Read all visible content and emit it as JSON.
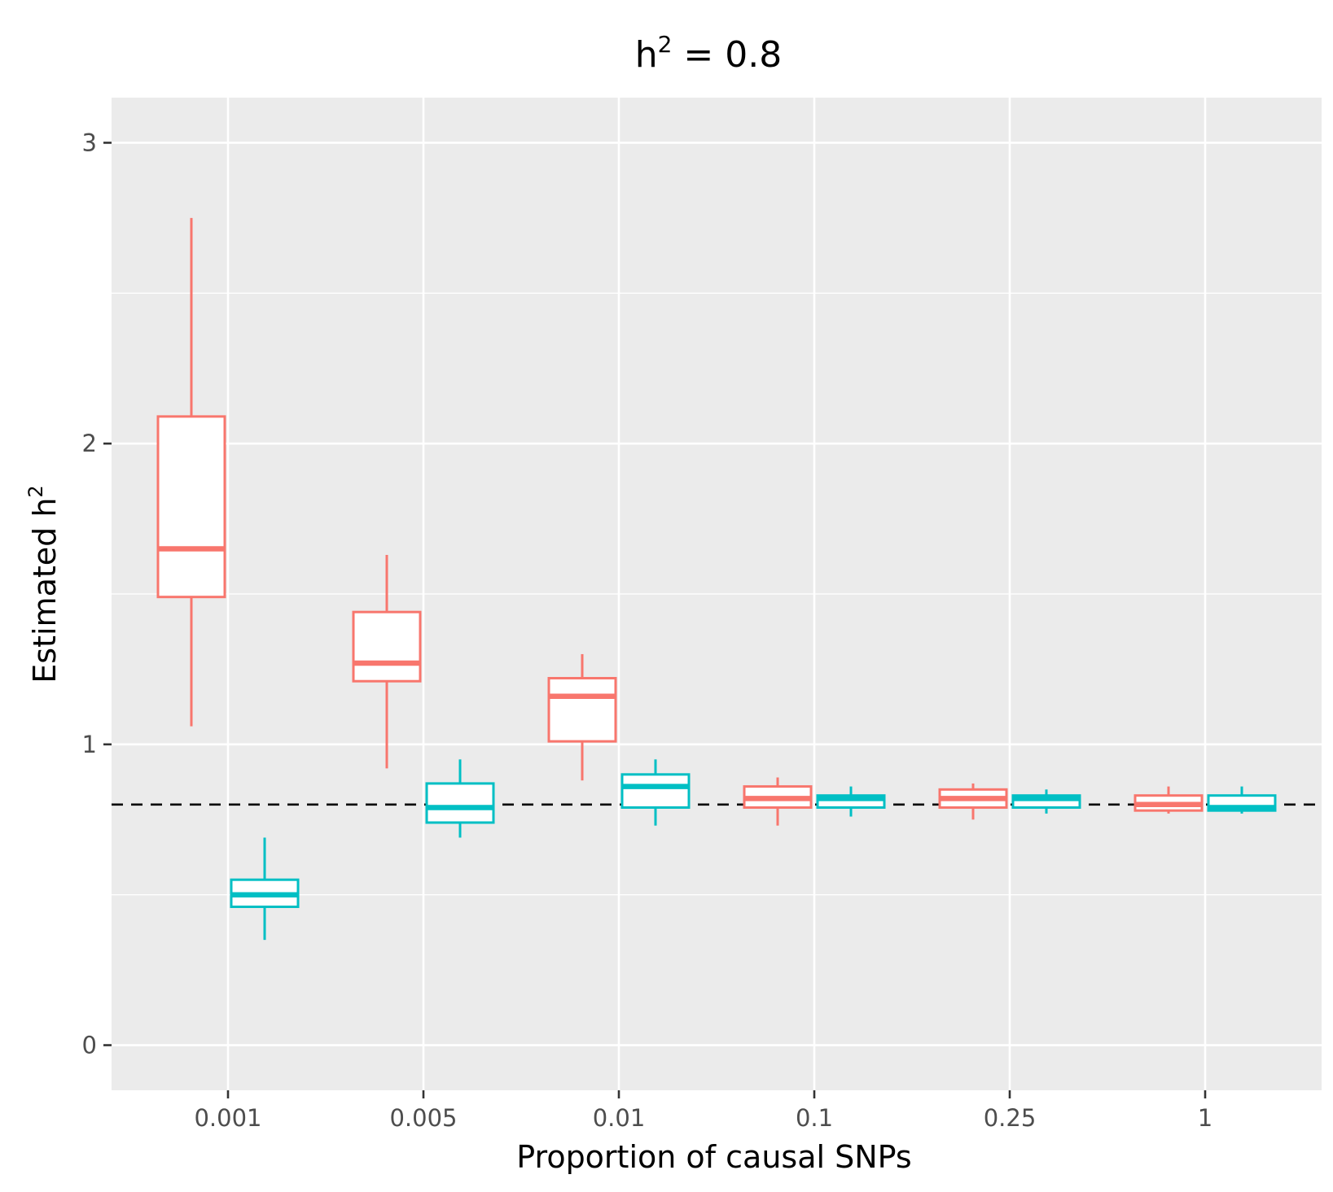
{
  "chart_data": {
    "type": "box",
    "title": "h",
    "title_superscript": "2",
    "title_suffix": " = 0.8",
    "xlabel": "Proportion of causal SNPs",
    "ylabel": "Estimated h",
    "ylabel_superscript": "2",
    "categories": [
      "0.001",
      "0.005",
      "0.01",
      "0.1",
      "0.25",
      "1"
    ],
    "yticks": [
      0,
      1,
      2,
      3
    ],
    "ylim": [
      -0.15,
      3.15
    ],
    "reference_line": 0.8,
    "background": "#ebebeb",
    "grid": true,
    "legend": "none",
    "series": [
      {
        "color": "#f8766d",
        "offset": "left",
        "boxes": [
          {
            "category": "0.001",
            "min": 1.06,
            "q1": 1.49,
            "median": 1.65,
            "q3": 2.09,
            "max": 2.75
          },
          {
            "category": "0.005",
            "min": 0.92,
            "q1": 1.21,
            "median": 1.27,
            "q3": 1.44,
            "max": 1.63
          },
          {
            "category": "0.01",
            "min": 0.88,
            "q1": 1.01,
            "median": 1.16,
            "q3": 1.22,
            "max": 1.3
          },
          {
            "category": "0.1",
            "min": 0.73,
            "q1": 0.79,
            "median": 0.82,
            "q3": 0.86,
            "max": 0.89
          },
          {
            "category": "0.25",
            "min": 0.75,
            "q1": 0.79,
            "median": 0.82,
            "q3": 0.85,
            "max": 0.87
          },
          {
            "category": "1",
            "min": 0.77,
            "q1": 0.78,
            "median": 0.8,
            "q3": 0.83,
            "max": 0.86
          }
        ]
      },
      {
        "color": "#00bfc4",
        "offset": "right",
        "boxes": [
          {
            "category": "0.001",
            "min": 0.35,
            "q1": 0.46,
            "median": 0.5,
            "q3": 0.55,
            "max": 0.69
          },
          {
            "category": "0.005",
            "min": 0.69,
            "q1": 0.74,
            "median": 0.79,
            "q3": 0.87,
            "max": 0.95
          },
          {
            "category": "0.01",
            "min": 0.73,
            "q1": 0.79,
            "median": 0.86,
            "q3": 0.9,
            "max": 0.95
          },
          {
            "category": "0.1",
            "min": 0.76,
            "q1": 0.79,
            "median": 0.82,
            "q3": 0.83,
            "max": 0.86
          },
          {
            "category": "0.25",
            "min": 0.77,
            "q1": 0.79,
            "median": 0.82,
            "q3": 0.83,
            "max": 0.85
          },
          {
            "category": "1",
            "min": 0.77,
            "q1": 0.78,
            "median": 0.79,
            "q3": 0.83,
            "max": 0.86
          }
        ]
      }
    ]
  }
}
